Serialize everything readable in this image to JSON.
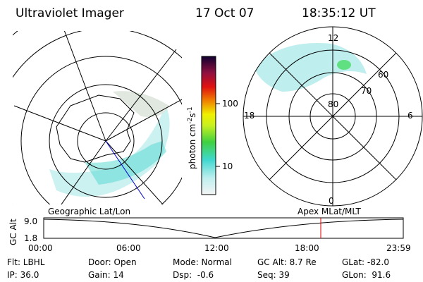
{
  "header": {
    "instrument": "Ultraviolet Imager",
    "date": "17 Oct 07",
    "time": "18:35:12 UT"
  },
  "colorbar": {
    "label_parts": [
      "photon cm",
      "-2",
      "s",
      "-1"
    ],
    "ticks": [
      "100",
      "10"
    ]
  },
  "polar_plot": {
    "mlt_labels": [
      "12",
      "18",
      "6",
      "0"
    ],
    "mlat_labels": [
      "60",
      "70",
      "80"
    ]
  },
  "timeline": {
    "left_label": "Geographic Lat/Lon",
    "right_label": "Apex MLat/MLT",
    "axis_label": "GC Alt",
    "axis_ticks": [
      "9.0",
      "1.8"
    ],
    "time_ticks": [
      "00:00",
      "06:00",
      "12:00",
      "18:00",
      "23:59"
    ]
  },
  "info": {
    "rows": [
      [
        "Flt: LBHL",
        "Door: Open",
        "Mode: Normal",
        "GC Alt: 8.7 Re",
        "GLat: -82.0"
      ],
      [
        "IP: 36.0",
        "Gain: 14",
        "Dsp:  -0.6",
        "Seq: 39",
        "GLon:  91.6"
      ]
    ]
  }
}
